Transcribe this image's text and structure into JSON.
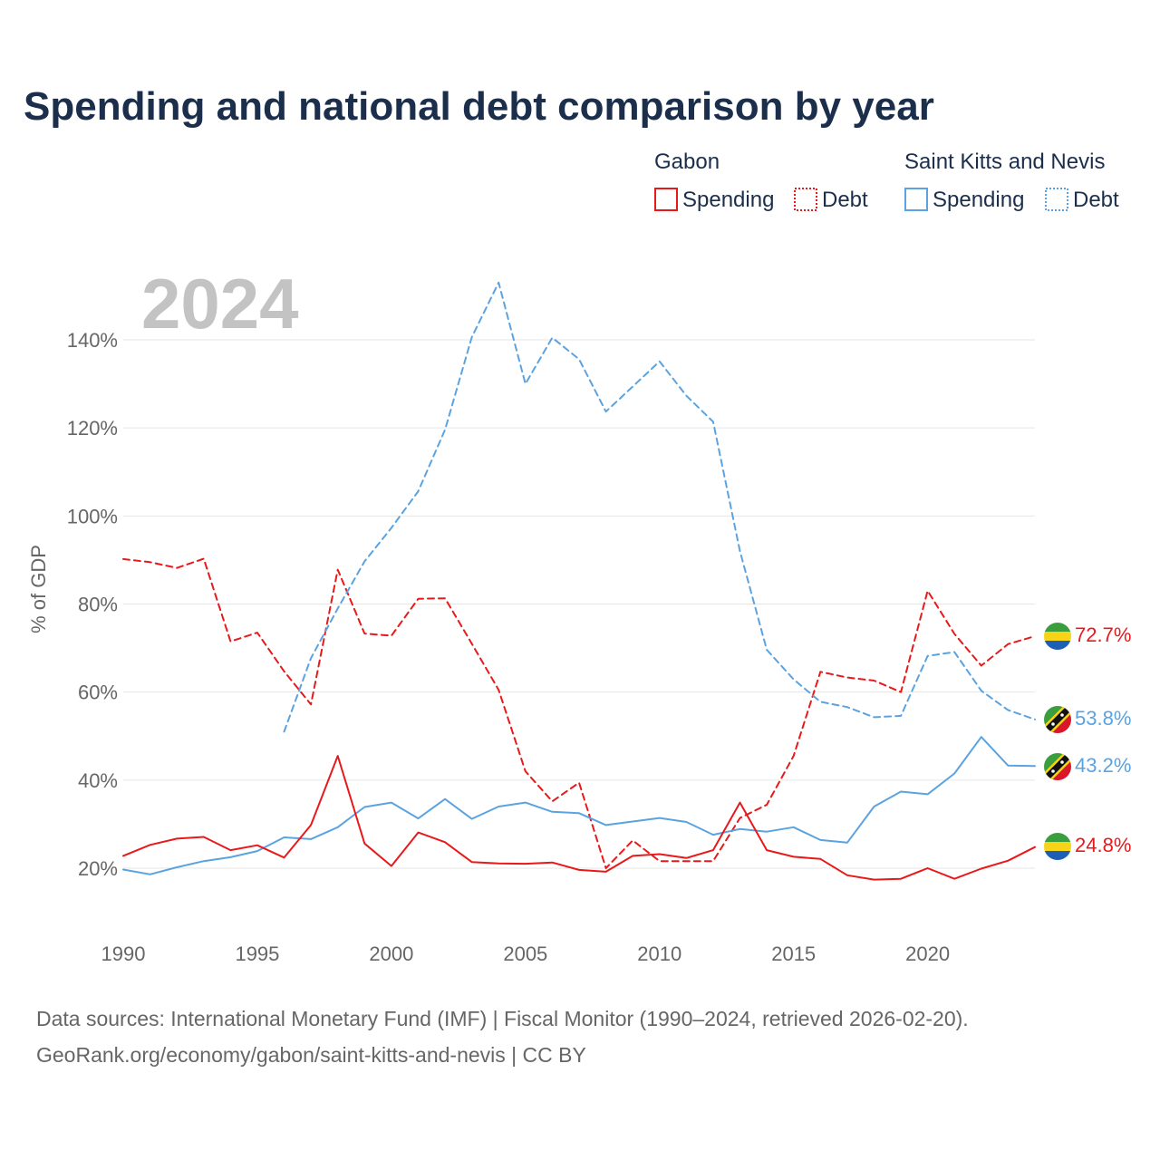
{
  "title": "Spending and national debt comparison by year",
  "year_watermark": "2024",
  "legend": {
    "groups": [
      {
        "name": "Gabon",
        "color": "#e8191b",
        "items": [
          "Spending",
          "Debt"
        ]
      },
      {
        "name": "Saint Kitts and Nevis",
        "color": "#5ba3e0",
        "items": [
          "Spending",
          "Debt"
        ]
      }
    ]
  },
  "source_line1": "Data sources: International Monetary Fund (IMF) | Fiscal Monitor (1990–2024, retrieved 2026-02-20).",
  "source_line2": "GeoRank.org/economy/gabon/saint-kitts-and-nevis | CC BY",
  "flag_icons": {
    "gabon": "gabon-flag-icon",
    "skn": "saint-kitts-flag-icon"
  },
  "chart_data": {
    "type": "line",
    "title": "Spending and national debt comparison by year",
    "xlabel": "",
    "ylabel": "% of GDP",
    "xlim": [
      1990,
      2024
    ],
    "ylim": [
      10,
      150
    ],
    "x_ticks": [
      1990,
      1995,
      2000,
      2005,
      2010,
      2015,
      2020
    ],
    "x_tick_labels": [
      "1990",
      "1995",
      "2000",
      "2005",
      "2010",
      "2015",
      "2020"
    ],
    "y_ticks": [
      20,
      40,
      60,
      80,
      100,
      120,
      140
    ],
    "y_tick_labels": [
      "20%",
      "40%",
      "60%",
      "80%",
      "100%",
      "120%",
      "140%"
    ],
    "grid": true,
    "legend_position": "top-right",
    "series": [
      {
        "name": "Gabon Debt",
        "country": "gabon",
        "kind": "Debt",
        "color": "#e8191b",
        "dashed": true,
        "x": [
          1990,
          1991,
          1992,
          1993,
          1994,
          1995,
          1996,
          1997,
          1998,
          1999,
          2000,
          2001,
          2002,
          2003,
          2004,
          2005,
          2006,
          2007,
          2008,
          2009,
          2010,
          2011,
          2012,
          2013,
          2014,
          2015,
          2016,
          2017,
          2018,
          2019,
          2020,
          2021,
          2022,
          2023,
          2024
        ],
        "values": [
          90.2,
          89.5,
          88.2,
          90.3,
          71.5,
          73.5,
          64.7,
          57.2,
          87.8,
          73.3,
          72.8,
          81.2,
          81.3,
          71.0,
          60.5,
          42.0,
          35.2,
          39.4,
          20.0,
          26.3,
          21.6,
          21.6,
          21.6,
          31.4,
          34.4,
          45.5,
          64.6,
          63.3,
          62.6,
          60.0,
          83.0,
          73.2,
          66.0,
          70.9,
          72.7
        ],
        "end_label": "72.7%"
      },
      {
        "name": "Saint Kitts and Nevis Debt",
        "country": "skn",
        "kind": "Debt",
        "color": "#5ba3e0",
        "dashed": true,
        "x": [
          1996,
          1997,
          1998,
          1999,
          2000,
          2001,
          2002,
          2003,
          2004,
          2005,
          2006,
          2007,
          2008,
          2009,
          2010,
          2011,
          2012,
          2013,
          2014,
          2015,
          2016,
          2017,
          2018,
          2019,
          2020,
          2021,
          2022,
          2023,
          2024
        ],
        "values": [
          51.0,
          67.7,
          79.0,
          89.7,
          97.3,
          105.6,
          119.6,
          140.6,
          153.0,
          130.0,
          140.5,
          135.6,
          123.7,
          129.4,
          135.1,
          127.3,
          121.4,
          92.0,
          69.6,
          62.9,
          57.8,
          56.6,
          54.3,
          54.6,
          68.2,
          69.1,
          60.3,
          55.9,
          53.8
        ],
        "end_label": "53.8%"
      },
      {
        "name": "Saint Kitts and Nevis Spending",
        "country": "skn",
        "kind": "Spending",
        "color": "#5ba3e0",
        "dashed": false,
        "x": [
          1990,
          1991,
          1992,
          1993,
          1994,
          1995,
          1996,
          1997,
          1998,
          1999,
          2000,
          2001,
          2002,
          2003,
          2004,
          2005,
          2006,
          2007,
          2008,
          2009,
          2010,
          2011,
          2012,
          2013,
          2014,
          2015,
          2016,
          2017,
          2018,
          2019,
          2020,
          2021,
          2022,
          2023,
          2024
        ],
        "values": [
          19.7,
          18.6,
          20.2,
          21.6,
          22.5,
          23.9,
          27.0,
          26.6,
          29.3,
          33.9,
          34.9,
          31.3,
          35.7,
          31.2,
          34.0,
          34.9,
          32.8,
          32.5,
          29.8,
          30.6,
          31.4,
          30.5,
          27.6,
          28.9,
          28.3,
          29.3,
          26.4,
          25.8,
          34.0,
          37.4,
          36.8,
          41.5,
          49.8,
          43.3,
          43.2
        ],
        "end_label": "43.2%"
      },
      {
        "name": "Gabon Spending",
        "country": "gabon",
        "kind": "Spending",
        "color": "#e8191b",
        "dashed": false,
        "x": [
          1990,
          1991,
          1992,
          1993,
          1994,
          1995,
          1996,
          1997,
          1998,
          1999,
          2000,
          2001,
          2002,
          2003,
          2004,
          2005,
          2006,
          2007,
          2008,
          2009,
          2010,
          2011,
          2012,
          2013,
          2014,
          2015,
          2016,
          2017,
          2018,
          2019,
          2020,
          2021,
          2022,
          2023,
          2024
        ],
        "values": [
          22.8,
          25.3,
          26.7,
          27.1,
          24.1,
          25.2,
          22.4,
          29.8,
          45.5,
          25.6,
          20.5,
          28.1,
          25.9,
          21.4,
          21.1,
          21.0,
          21.3,
          19.6,
          19.2,
          22.8,
          23.2,
          22.3,
          24.1,
          34.9,
          24.1,
          22.6,
          22.1,
          18.4,
          17.4,
          17.6,
          20.0,
          17.6,
          19.9,
          21.7,
          24.8
        ],
        "end_label": "24.8%"
      }
    ]
  }
}
